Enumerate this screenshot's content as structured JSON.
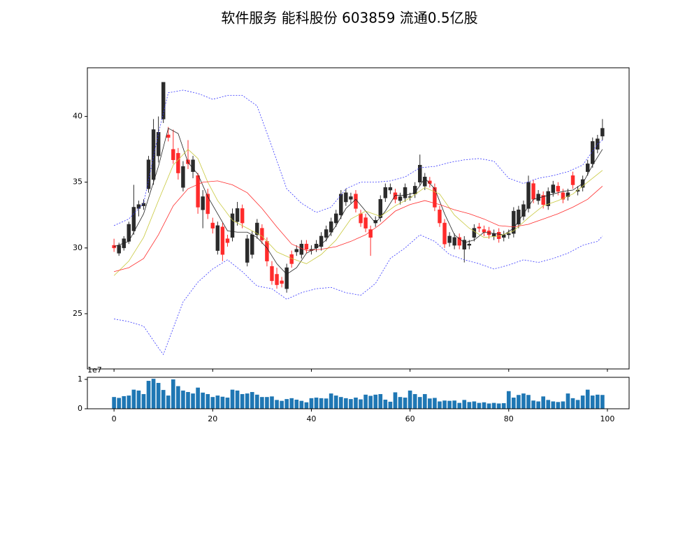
{
  "chart_data": [
    {
      "type": "candlestick",
      "title": "软件服务 能科股份 603859 流通0.5亿股",
      "up_color": "#2b2b2b",
      "down_color": "#ff2b2b",
      "x": [
        0,
        1,
        2,
        3,
        4,
        5,
        6,
        7,
        8,
        9,
        10,
        11,
        12,
        13,
        14,
        15,
        16,
        17,
        18,
        19,
        20,
        21,
        22,
        23,
        24,
        25,
        26,
        27,
        28,
        29,
        30,
        31,
        32,
        33,
        34,
        35,
        36,
        37,
        38,
        39,
        40,
        41,
        42,
        43,
        44,
        45,
        46,
        47,
        48,
        49,
        50,
        51,
        52,
        53,
        54,
        55,
        56,
        57,
        58,
        59,
        60,
        61,
        62,
        63,
        64,
        65,
        66,
        67,
        68,
        69,
        70,
        71,
        72,
        73,
        74,
        75,
        76,
        77,
        78,
        79,
        80,
        81,
        82,
        83,
        84,
        85,
        86,
        87,
        88,
        89,
        90,
        91,
        92,
        93,
        94,
        95,
        96,
        97,
        98,
        99
      ],
      "open": [
        30.2,
        29.6,
        30.0,
        30.5,
        31.3,
        33.0,
        33.2,
        34.5,
        35.2,
        37.0,
        39.8,
        38.6,
        37.5,
        37.2,
        34.6,
        36.7,
        35.8,
        35.5,
        32.9,
        34.1,
        31.9,
        29.8,
        31.6,
        30.7,
        30.8,
        32.0,
        33.0,
        28.9,
        29.5,
        31.0,
        31.5,
        30.5,
        28.6,
        28.0,
        27.5,
        26.9,
        29.5,
        29.7,
        29.5,
        30.3,
        29.8,
        30.0,
        30.1,
        30.8,
        31.2,
        31.9,
        32.5,
        33.5,
        33.7,
        34.1,
        32.6,
        32.3,
        31.4,
        31.9,
        32.3,
        33.8,
        34.4,
        34.2,
        33.6,
        33.8,
        33.9,
        34.1,
        35.0,
        34.7,
        35.1,
        34.6,
        32.9,
        31.9,
        30.4,
        30.2,
        30.8,
        29.9,
        30.2,
        30.8,
        31.6,
        31.4,
        31.3,
        30.9,
        31.2,
        30.8,
        31.0,
        31.1,
        31.8,
        32.4,
        33.0,
        34.9,
        33.6,
        34.0,
        33.2,
        34.2,
        34.7,
        34.2,
        33.9,
        35.5,
        34.3,
        34.6,
        35.8,
        36.4,
        37.5,
        38.5
      ],
      "high": [
        30.7,
        30.4,
        30.9,
        32.0,
        34.8,
        33.6,
        33.7,
        37.0,
        39.8,
        40.0,
        42.6,
        39.2,
        39.0,
        37.6,
        36.6,
        38.2,
        37.0,
        35.7,
        34.4,
        34.5,
        32.3,
        32.0,
        31.9,
        31.0,
        33.0,
        33.5,
        33.3,
        31.0,
        31.3,
        32.2,
        31.8,
        30.8,
        29.0,
        28.5,
        27.8,
        28.8,
        29.8,
        30.2,
        30.6,
        30.6,
        30.2,
        30.6,
        31.2,
        31.7,
        32.3,
        32.9,
        34.4,
        34.5,
        34.2,
        34.4,
        32.9,
        32.6,
        31.7,
        32.4,
        34.0,
        34.9,
        34.9,
        34.5,
        34.2,
        34.9,
        34.2,
        35.0,
        37.1,
        35.7,
        35.4,
        34.9,
        33.2,
        32.2,
        31.2,
        31.1,
        31.1,
        30.9,
        30.6,
        31.8,
        31.9,
        31.7,
        31.6,
        31.4,
        31.5,
        31.3,
        31.4,
        33.1,
        33.2,
        33.6,
        35.5,
        35.2,
        34.4,
        34.3,
        34.6,
        35.1,
        35.0,
        34.5,
        34.5,
        35.8,
        34.7,
        35.5,
        36.7,
        38.4,
        38.6,
        39.8
      ],
      "low": [
        29.7,
        29.4,
        29.8,
        30.3,
        31.0,
        32.4,
        32.9,
        34.2,
        34.8,
        36.5,
        39.5,
        38.1,
        36.4,
        35.2,
        34.3,
        36.0,
        35.3,
        32.6,
        31.5,
        32.2,
        31.1,
        29.5,
        29.0,
        30.1,
        30.5,
        31.7,
        31.5,
        28.6,
        29.2,
        30.7,
        30.3,
        28.6,
        27.2,
        26.9,
        27.0,
        26.6,
        28.5,
        29.4,
        29.2,
        29.6,
        29.5,
        29.7,
        29.8,
        30.5,
        30.9,
        31.6,
        32.2,
        33.2,
        33.4,
        32.7,
        31.6,
        31.2,
        29.4,
        31.6,
        32.0,
        33.5,
        34.1,
        33.4,
        33.3,
        33.5,
        33.6,
        33.8,
        34.7,
        34.4,
        34.6,
        32.8,
        31.6,
        30.0,
        30.1,
        29.9,
        29.9,
        28.9,
        29.9,
        30.5,
        31.2,
        30.9,
        30.7,
        30.6,
        30.4,
        30.5,
        30.7,
        30.8,
        31.5,
        32.1,
        32.7,
        33.4,
        33.3,
        33.0,
        32.9,
        33.9,
        34.0,
        33.4,
        33.6,
        34.5,
        34.0,
        34.3,
        35.5,
        36.1,
        37.2,
        38.2
      ],
      "close": [
        30.0,
        30.2,
        30.7,
        31.8,
        33.1,
        33.3,
        33.4,
        36.7,
        39.0,
        38.8,
        42.6,
        38.4,
        36.7,
        35.7,
        36.2,
        36.4,
        36.7,
        33.1,
        33.9,
        32.6,
        31.5,
        31.7,
        29.5,
        30.4,
        32.6,
        33.0,
        31.9,
        30.7,
        31.0,
        31.9,
        30.6,
        29.0,
        27.5,
        27.2,
        27.3,
        28.5,
        28.8,
        29.9,
        30.3,
        29.9,
        29.9,
        30.3,
        30.9,
        31.4,
        32.0,
        32.6,
        34.1,
        34.2,
        33.9,
        33.0,
        31.9,
        31.5,
        30.8,
        32.1,
        33.7,
        34.6,
        34.6,
        33.7,
        33.9,
        34.6,
        33.9,
        34.7,
        36.3,
        35.4,
        34.9,
        33.1,
        31.9,
        30.3,
        30.9,
        30.8,
        30.2,
        30.6,
        30.3,
        31.5,
        31.5,
        31.2,
        31.0,
        31.1,
        30.7,
        31.0,
        31.1,
        32.8,
        32.9,
        33.3,
        35.0,
        33.7,
        34.1,
        33.3,
        34.3,
        34.8,
        34.3,
        33.7,
        34.2,
        34.8,
        34.4,
        35.2,
        36.4,
        38.1,
        38.3,
        39.1
      ],
      "series": [
        {
          "color": "#3333ff",
          "dashed": true,
          "x": [
            0,
            3,
            6,
            9,
            11,
            14,
            17,
            20,
            23,
            26,
            29,
            32,
            35,
            38,
            41,
            44,
            47,
            50,
            53,
            56,
            59,
            62,
            65,
            68,
            71,
            74,
            77,
            80,
            83,
            86,
            89,
            92,
            95,
            98,
            99
          ],
          "values": [
            31.7,
            32.2,
            33.4,
            38.7,
            41.8,
            42.0,
            41.75,
            41.3,
            41.6,
            41.6,
            40.8,
            37.7,
            34.5,
            33.4,
            32.7,
            33.1,
            34.5,
            35.0,
            35.0,
            35.1,
            35.4,
            36.1,
            36.2,
            36.5,
            36.7,
            36.8,
            36.6,
            35.3,
            34.9,
            35.3,
            35.5,
            35.8,
            36.3,
            37.9,
            38.2
          ]
        },
        {
          "color": "#3333ff",
          "dashed": true,
          "x": [
            0,
            3,
            6,
            9,
            10,
            12,
            14,
            17,
            20,
            23,
            26,
            29,
            32,
            35,
            38,
            41,
            44,
            47,
            50,
            53,
            56,
            59,
            62,
            65,
            68,
            71,
            74,
            77,
            80,
            83,
            86,
            89,
            92,
            95,
            98,
            99
          ],
          "values": [
            24.6,
            24.4,
            24.05,
            22.4,
            21.9,
            23.9,
            25.9,
            27.4,
            28.4,
            29.1,
            28.2,
            27.1,
            26.9,
            26.1,
            26.6,
            26.9,
            27.0,
            26.6,
            26.4,
            27.3,
            29.2,
            30.0,
            31.0,
            30.5,
            29.5,
            29.1,
            28.8,
            28.4,
            28.7,
            29.1,
            28.9,
            29.2,
            29.6,
            30.2,
            30.5,
            30.9
          ]
        },
        {
          "color": "#222222",
          "dashed": false,
          "x": [
            0,
            3,
            6,
            9,
            11,
            13,
            15,
            17,
            19,
            21,
            23,
            25,
            27,
            29,
            31,
            33,
            35,
            37,
            39,
            41,
            43,
            45,
            47,
            49,
            51,
            53,
            55,
            57,
            59,
            61,
            63,
            65,
            67,
            69,
            71,
            73,
            75,
            77,
            79,
            81,
            83,
            85,
            87,
            89,
            91,
            93,
            95,
            97,
            99
          ],
          "values": [
            30.1,
            30.5,
            32.6,
            36.2,
            39.1,
            38.7,
            36.5,
            35.6,
            33.9,
            32.6,
            31.3,
            31.2,
            31.2,
            30.8,
            30.0,
            28.8,
            28.0,
            28.5,
            29.6,
            30.0,
            30.6,
            31.7,
            33.0,
            33.7,
            32.8,
            31.9,
            32.8,
            34.0,
            34.0,
            34.2,
            35.3,
            34.5,
            32.6,
            31.0,
            30.4,
            30.6,
            31.2,
            31.1,
            31.0,
            31.5,
            32.6,
            33.7,
            33.9,
            34.1,
            34.3,
            34.4,
            34.9,
            36.3,
            37.5
          ]
        },
        {
          "color": "#c8c83c",
          "dashed": false,
          "x": [
            0,
            3,
            6,
            9,
            12,
            15,
            17,
            19,
            21,
            24,
            27,
            30,
            33,
            36,
            39,
            42,
            45,
            48,
            51,
            54,
            57,
            60,
            63,
            66,
            69,
            72,
            75,
            78,
            81,
            84,
            87,
            90,
            93,
            96,
            99
          ],
          "values": [
            27.9,
            29.0,
            30.8,
            33.6,
            36.3,
            37.5,
            36.8,
            35.0,
            33.6,
            32.1,
            31.5,
            30.9,
            29.7,
            29.2,
            28.8,
            29.5,
            30.6,
            32.2,
            32.8,
            32.4,
            33.2,
            33.8,
            34.6,
            34.1,
            32.5,
            31.5,
            30.8,
            30.9,
            31.3,
            32.3,
            33.2,
            33.6,
            34.1,
            35.0,
            35.9
          ]
        },
        {
          "color": "#ff2b2b",
          "dashed": false,
          "x": [
            0,
            3,
            6,
            9,
            12,
            15,
            18,
            21,
            24,
            27,
            30,
            33,
            36,
            39,
            42,
            45,
            48,
            51,
            54,
            57,
            60,
            63,
            66,
            69,
            72,
            75,
            78,
            81,
            84,
            87,
            90,
            93,
            96,
            99
          ],
          "values": [
            28.2,
            28.5,
            29.2,
            31.0,
            33.2,
            34.5,
            35.0,
            35.1,
            34.8,
            34.2,
            33.0,
            31.6,
            30.3,
            29.8,
            29.9,
            30.1,
            30.5,
            31.0,
            31.8,
            32.8,
            33.3,
            33.6,
            33.3,
            32.9,
            32.6,
            32.2,
            31.7,
            31.6,
            31.8,
            32.2,
            32.6,
            33.1,
            33.7,
            34.7
          ]
        }
      ],
      "xlim": [
        -5.4,
        104.4
      ],
      "xticks": [
        0,
        20,
        40,
        60,
        80,
        100
      ],
      "ylim": [
        20.8,
        43.7
      ],
      "yticks": [
        25,
        30,
        35,
        40
      ]
    },
    {
      "type": "bar",
      "color": "#1f77b4",
      "offset_label": "1e7",
      "x": [
        0,
        1,
        2,
        3,
        4,
        5,
        6,
        7,
        8,
        9,
        10,
        11,
        12,
        13,
        14,
        15,
        16,
        17,
        18,
        19,
        20,
        21,
        22,
        23,
        24,
        25,
        26,
        27,
        28,
        29,
        30,
        31,
        32,
        33,
        34,
        35,
        36,
        37,
        38,
        39,
        40,
        41,
        42,
        43,
        44,
        45,
        46,
        47,
        48,
        49,
        50,
        51,
        52,
        53,
        54,
        55,
        56,
        57,
        58,
        59,
        60,
        61,
        62,
        63,
        64,
        65,
        66,
        67,
        68,
        69,
        70,
        71,
        72,
        73,
        74,
        75,
        76,
        77,
        78,
        79,
        80,
        81,
        82,
        83,
        84,
        85,
        86,
        87,
        88,
        89,
        90,
        91,
        92,
        93,
        94,
        95,
        96,
        97,
        98,
        99
      ],
      "values": [
        0.4,
        0.37,
        0.43,
        0.45,
        0.65,
        0.62,
        0.5,
        0.95,
        1.02,
        0.88,
        0.64,
        0.45,
        1.0,
        0.77,
        0.62,
        0.57,
        0.52,
        0.72,
        0.55,
        0.5,
        0.4,
        0.45,
        0.41,
        0.38,
        0.65,
        0.62,
        0.5,
        0.52,
        0.57,
        0.48,
        0.4,
        0.4,
        0.42,
        0.3,
        0.27,
        0.33,
        0.36,
        0.31,
        0.27,
        0.22,
        0.36,
        0.38,
        0.36,
        0.35,
        0.52,
        0.45,
        0.4,
        0.36,
        0.33,
        0.38,
        0.32,
        0.48,
        0.44,
        0.48,
        0.5,
        0.31,
        0.24,
        0.56,
        0.4,
        0.38,
        0.62,
        0.5,
        0.4,
        0.5,
        0.35,
        0.37,
        0.25,
        0.28,
        0.27,
        0.28,
        0.2,
        0.3,
        0.23,
        0.25,
        0.2,
        0.22,
        0.18,
        0.2,
        0.18,
        0.19,
        0.6,
        0.38,
        0.47,
        0.52,
        0.47,
        0.28,
        0.25,
        0.42,
        0.3,
        0.25,
        0.23,
        0.25,
        0.52,
        0.36,
        0.3,
        0.45,
        0.65,
        0.45,
        0.48,
        0.47
      ],
      "xlim": [
        -5.4,
        104.4
      ],
      "xticks": [
        0,
        20,
        40,
        60,
        80,
        100
      ],
      "ylim": [
        0,
        1.07
      ],
      "yticks": [
        0,
        1
      ]
    }
  ]
}
